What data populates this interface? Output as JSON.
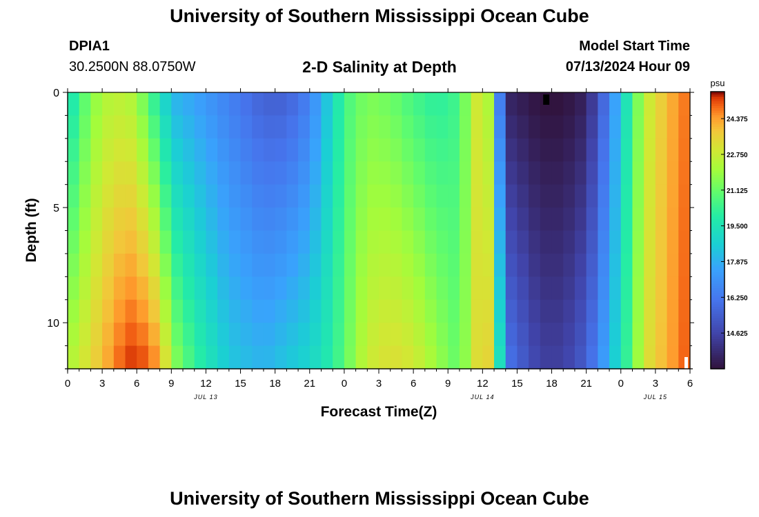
{
  "header": {
    "title": "University of Southern Mississippi Ocean Cube",
    "station_id": "DPIA1",
    "coordinates": "30.2500N  88.0750W",
    "plot_title": "2-D Salinity at Depth",
    "model_start_label": "Model Start Time",
    "model_start_value": "07/13/2024 Hour 09"
  },
  "footer": {
    "title": "University of Southern Mississippi Ocean Cube"
  },
  "chart_data": {
    "type": "heatmap",
    "title": "2-D Salinity at Depth",
    "xlabel": "Forecast Time(Z)",
    "ylabel": "Depth (ft)",
    "xlim": [
      0,
      54
    ],
    "ylim": [
      0,
      12
    ],
    "x_tick_values": [
      0,
      3,
      6,
      9,
      12,
      15,
      18,
      21,
      24,
      27,
      30,
      33,
      36,
      39,
      42,
      45,
      48,
      51,
      54
    ],
    "x_tick_labels": [
      "0",
      "3",
      "6",
      "9",
      "12",
      "15",
      "18",
      "21",
      "0",
      "3",
      "6",
      "9",
      "12",
      "15",
      "18",
      "21",
      "0",
      "3",
      "6"
    ],
    "y_tick_values": [
      0,
      5,
      10
    ],
    "y_tick_labels": [
      "0",
      "5",
      "10"
    ],
    "date_labels": [
      {
        "hour": 12,
        "label": "JUL 13"
      },
      {
        "hour": 36,
        "label": "JUL 14"
      },
      {
        "hour": 51,
        "label": "JUL 15"
      }
    ],
    "colorbar": {
      "unit": "psu",
      "min": 13.0,
      "max": 25.6,
      "tick_values": [
        24.375,
        22.75,
        21.125,
        19.5,
        17.875,
        16.25,
        14.625
      ],
      "tick_labels": [
        "24.375",
        "22.750",
        "21.125",
        "19.500",
        "17.875",
        "16.250",
        "14.625"
      ]
    },
    "time_step_hours": 1,
    "depth_levels_ft": [
      0,
      1,
      2,
      3,
      4,
      5,
      6,
      7,
      8,
      9,
      10,
      11
    ],
    "salinity_key_hours": [
      0,
      1,
      3,
      5,
      6,
      8,
      9,
      11,
      14,
      17,
      19,
      21,
      23,
      24,
      26,
      28,
      30,
      32,
      34,
      35,
      36,
      37,
      37.7,
      38.5,
      41,
      43,
      45,
      47,
      49,
      50,
      52,
      54
    ],
    "salinity_surface_psu": [
      19.0,
      20.5,
      22.3,
      22.5,
      22.0,
      19.5,
      18.0,
      17.5,
      16.5,
      15.5,
      15.5,
      16.5,
      19.0,
      20.5,
      21.5,
      21.2,
      20.5,
      20.0,
      20.5,
      22.3,
      23.5,
      21.0,
      14.5,
      13.5,
      13.0,
      13.0,
      13.5,
      16.5,
      20.5,
      22.5,
      24.0,
      25.0
    ],
    "salinity_bottom_psu": [
      22.3,
      22.8,
      24.0,
      25.3,
      25.5,
      24.5,
      22.0,
      20.3,
      18.5,
      18.0,
      18.5,
      19.0,
      20.0,
      21.0,
      22.8,
      23.3,
      23.0,
      22.0,
      21.0,
      22.5,
      24.0,
      23.0,
      18.0,
      16.0,
      14.5,
      14.5,
      15.5,
      18.0,
      21.0,
      23.0,
      24.2,
      25.2
    ],
    "anomalies": [
      {
        "hour": 41.5,
        "depth_ft": 0.3,
        "label": "missing value (black)"
      },
      {
        "hour": 54,
        "depth_ft": 11.5,
        "label": "missing value (white)"
      }
    ]
  }
}
